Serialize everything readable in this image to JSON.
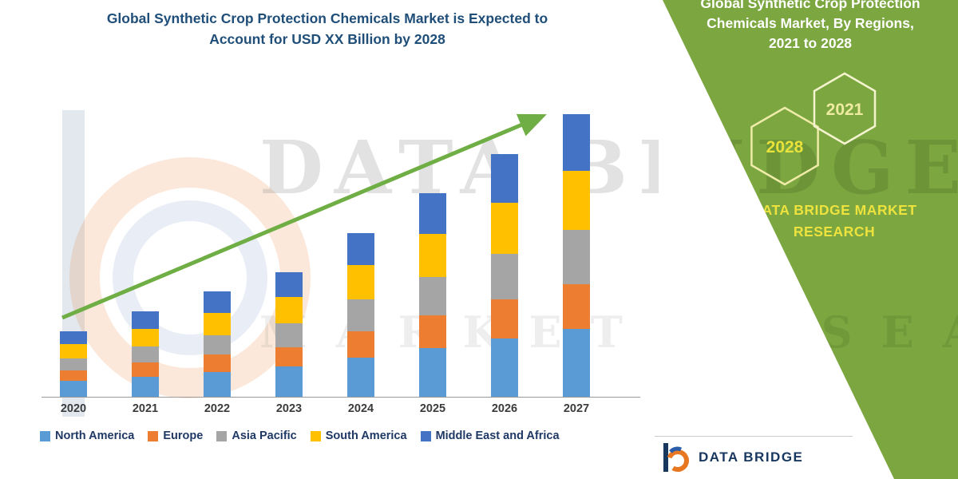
{
  "title": {
    "line1": "Global Synthetic Crop Protection Chemicals Market is Expected to",
    "line2": "Account for USD XX Billion by 2028"
  },
  "chart_data": {
    "type": "bar",
    "stacked": true,
    "title": "Global Synthetic Crop Protection Chemicals Market is Expected to Account for USD XX Billion by 2028",
    "xlabel": "",
    "ylabel": "",
    "units": "estimated relative units (no value axis shown in image)",
    "ylim": [
      0,
      45
    ],
    "legend_position": "bottom",
    "grid": false,
    "trend_arrow": true,
    "categories": [
      "2020",
      "2021",
      "2022",
      "2023",
      "2024",
      "2025",
      "2026",
      "2027"
    ],
    "series": [
      {
        "name": "North America",
        "color": "#5B9BD5",
        "values": [
          2.4,
          3.1,
          3.8,
          4.6,
          6.0,
          7.4,
          8.9,
          10.3
        ]
      },
      {
        "name": "Europe",
        "color": "#ED7D31",
        "values": [
          1.6,
          2.1,
          2.6,
          3.0,
          4.0,
          5.0,
          5.9,
          6.9
        ]
      },
      {
        "name": "Asia Pacific",
        "color": "#A5A5A5",
        "values": [
          1.9,
          2.5,
          3.0,
          3.6,
          4.8,
          5.9,
          7.0,
          8.2
        ]
      },
      {
        "name": "South America",
        "color": "#FFC000",
        "values": [
          2.1,
          2.7,
          3.4,
          4.0,
          5.3,
          6.5,
          7.8,
          9.0
        ]
      },
      {
        "name": "Middle East and Africa",
        "color": "#4472C4",
        "values": [
          2.0,
          2.6,
          3.2,
          3.8,
          4.9,
          6.2,
          7.4,
          8.6
        ]
      }
    ],
    "totals": [
      10,
      13,
      16,
      19,
      25,
      31,
      37,
      43
    ]
  },
  "side_panel": {
    "heading_line1": "Global Synthetic Crop Protection",
    "heading_line2": "Chemicals Market, By Regions,",
    "heading_line3": "2021 to 2028",
    "hexagons": [
      {
        "label": "2028"
      },
      {
        "label": "2021"
      }
    ],
    "brand_line1": "DATA BRIDGE MARKET",
    "brand_line2": "RESEARCH",
    "background_color": "#7BA640",
    "accent_yellow": "#EDE23E"
  },
  "watermark": {
    "line1": "DATA BRIDGE",
    "line2": "MARKET RESEARCH"
  },
  "footer": {
    "brand": "DATA BRIDGE"
  },
  "colors": {
    "title_blue": "#1F4E79",
    "arrow_green": "#6FAE44"
  }
}
